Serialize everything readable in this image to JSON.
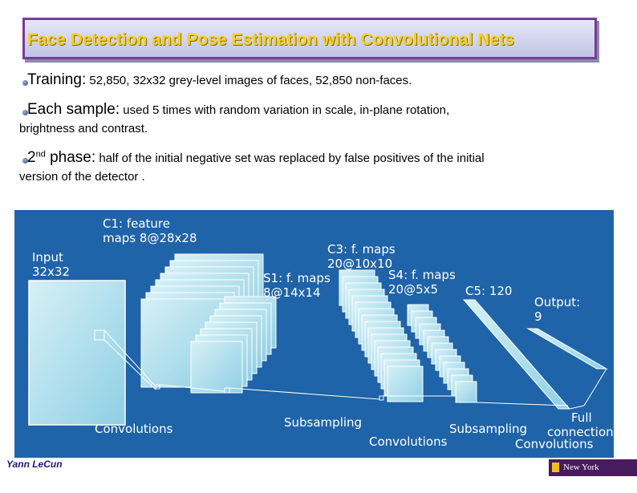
{
  "title": "Face Detection and Pose Estimation with Convolutional Nets",
  "bullets": [
    {
      "lead": "Training:",
      "text": " 52,850,  32x32 grey-level images of faces, 52,850 non-faces."
    },
    {
      "lead": "Each sample:",
      "text": "  used 5 times with random variation in scale, in-plane rotation,",
      "cont": "brightness and contrast."
    },
    {
      "lead": "2",
      "sup": "nd",
      "lead2": " phase:",
      "text": "  half of the initial negative set was replaced by false positives of the initial",
      "cont": "version of the detector ."
    }
  ],
  "diagram": {
    "labels": {
      "input": [
        "Input",
        "32x32"
      ],
      "c1": [
        "C1: feature",
        "maps 8@28x28"
      ],
      "s1": [
        "S1: f. maps",
        "8@14x14"
      ],
      "c3": [
        "C3: f. maps",
        "20@10x10"
      ],
      "s4": [
        "S4: f. maps",
        "20@5x5"
      ],
      "c5": "C5: 120",
      "output": [
        "Output:",
        "9"
      ],
      "convolutions_1": "Convolutions",
      "subsampling_1": "Subsampling",
      "convolutions_2": "Convolutions",
      "subsampling_2": "Subsampling",
      "full": [
        "Full",
        "connection"
      ],
      "convolutions_3": "Convolutions"
    }
  },
  "footer": {
    "author": "Yann LeCun",
    "logo_text": "New York University"
  }
}
